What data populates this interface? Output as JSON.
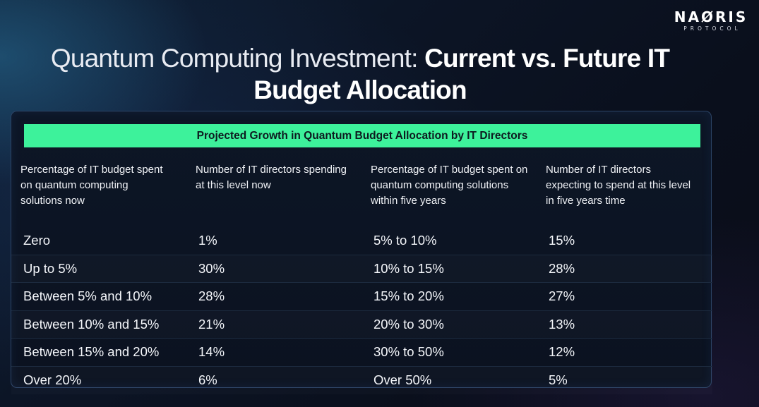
{
  "logo": {
    "word": "NAØRIS",
    "sub": "PROTOCOL"
  },
  "title": {
    "light": "Quantum Computing Investment: ",
    "bold": "Current vs. Future IT Budget Allocation"
  },
  "table": {
    "banner": "Projected Growth in Quantum Budget Allocation by IT Directors",
    "headers": [
      "Percentage of IT budget spent on quantum computing solutions now",
      "Number of IT directors spending at this level now",
      "Percentage of IT budget spent on quantum computing solutions within five years",
      "Number of IT directors expecting to spend at this level in five years time"
    ],
    "rows": [
      [
        "Zero",
        "1%",
        "5% to 10%",
        "15%"
      ],
      [
        "Up to 5%",
        "30%",
        "10% to 15%",
        "28%"
      ],
      [
        "Between 5% and 10%",
        "28%",
        "15% to 20%",
        "27%"
      ],
      [
        "Between 10% and 15%",
        "21%",
        "20% to 30%",
        "13%"
      ],
      [
        "Between 15% and 20%",
        "14%",
        "30% to 50%",
        "12%"
      ],
      [
        "Over 20%",
        "6%",
        "Over 50%",
        "5%"
      ]
    ]
  },
  "colors": {
    "accent": "#3df29b",
    "background": "#0c1526",
    "panel_border": "#2c4466"
  }
}
